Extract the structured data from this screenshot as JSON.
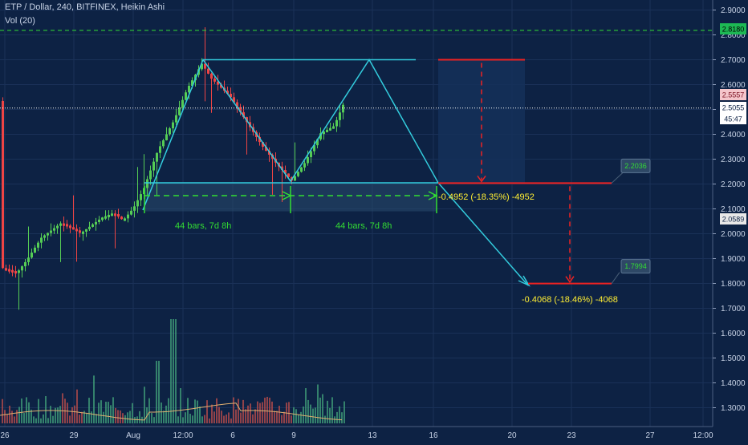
{
  "header": {
    "title": "ETP / Dollar, 240, BITFINEX, Heikin Ashi",
    "volume_label": "Vol (20)"
  },
  "colors": {
    "background": "#0d2244",
    "bull": "#55cc55",
    "bear": "#ee4444",
    "pattern": "#33ccdd",
    "target": "#ee2222",
    "measure": "#33dd33",
    "annotation": "#ffee33"
  },
  "chart_data": {
    "type": "candlestick",
    "symbol": "ETP / Dollar",
    "interval": "240",
    "exchange": "BITFINEX",
    "chart_style": "Heikin Ashi",
    "y_axis": {
      "position": "right",
      "ylim": [
        1.25,
        2.93
      ],
      "ticks": [
        "2.9000",
        "2.8000",
        "2.7000",
        "2.6000",
        "2.5000",
        "2.4000",
        "2.3000",
        "2.2000",
        "2.1000",
        "2.0000",
        "1.9000",
        "1.8000",
        "1.7000",
        "1.6000",
        "1.5000",
        "1.4000",
        "1.3000"
      ]
    },
    "x_axis": {
      "ticks": [
        "26",
        "29",
        "Aug",
        "12:00",
        "6",
        "9",
        "13",
        "16",
        "20",
        "23",
        "27",
        "12:00"
      ]
    },
    "price_tags": [
      {
        "value": "2.8180",
        "color": "#1db954",
        "text_color": "#000000"
      },
      {
        "value": "2.5557",
        "color": "#f5c6cb",
        "text_color": "#7a1020"
      },
      {
        "value": "2.5055",
        "color": "#ffffff",
        "text_color": "#0d2244"
      },
      {
        "value": "45:47",
        "color": "#ffffff",
        "text_color": "#0d2244"
      },
      {
        "value": "2.0589",
        "color": "#e8e8e8",
        "text_color": "#0d2244"
      }
    ],
    "horizontal_levels": [
      {
        "price": 2.818,
        "style": "dashed",
        "color": "#33dd33"
      },
      {
        "price": 2.5055,
        "style": "dotted",
        "color": "#ffffff"
      }
    ],
    "series": [
      {
        "name": "Heikin Ashi",
        "kind": "ohlc",
        "points": []
      },
      {
        "name": "Vol (20)",
        "kind": "volume",
        "values": []
      }
    ],
    "pattern": {
      "name": "double top",
      "peak_price": 2.7,
      "neckline_price": 2.205,
      "measure_labels": [
        "44 bars, 7d 8h",
        "44 bars, 7d 8h"
      ],
      "targets": [
        {
          "tag": "2.2036",
          "price": 2.2036,
          "annotation": "-0.4952 (-18.35%) -4952"
        },
        {
          "tag": "1.7994",
          "price": 1.7994,
          "annotation": "-0.4068 (-18.46%) -4068"
        }
      ]
    }
  }
}
